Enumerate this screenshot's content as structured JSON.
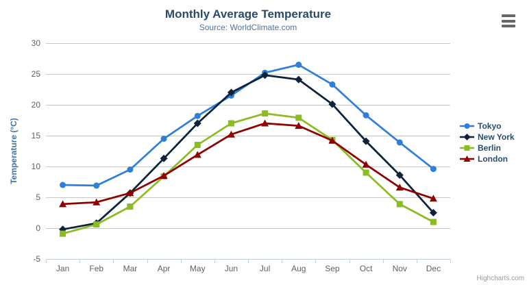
{
  "credits": {
    "label": "Highcharts.com"
  },
  "menu": {
    "icon": "hamburger-menu-icon"
  },
  "colors": {
    "title": "#274b6d",
    "subtitle": "#4d759e",
    "axis_label": "#606060",
    "axis_title": "#4572a7",
    "grid_line": "#c6c6c6",
    "axis_line": "#c0d0e0",
    "legend_text": "#274b6d",
    "menu_icon": "#666666",
    "credits": "#999999"
  },
  "chart_data": {
    "type": "line",
    "title": "Monthly Average Temperature",
    "subtitle": "Source: WorldClimate.com",
    "categories": [
      "Jan",
      "Feb",
      "Mar",
      "Apr",
      "May",
      "Jun",
      "Jul",
      "Aug",
      "Sep",
      "Oct",
      "Nov",
      "Dec"
    ],
    "xlabel": "",
    "ylabel": "Temperature (°C)",
    "ylim": [
      -5,
      30
    ],
    "yticks": [
      -5,
      0,
      5,
      10,
      15,
      20,
      25,
      30
    ],
    "grid": true,
    "legend_position": "right-middle",
    "series": [
      {
        "name": "Tokyo",
        "color": "#2f7ed8",
        "marker": "circle",
        "values": [
          7.0,
          6.9,
          9.5,
          14.5,
          18.2,
          21.5,
          25.2,
          26.5,
          23.3,
          18.3,
          13.9,
          9.6
        ]
      },
      {
        "name": "New York",
        "color": "#0d233a",
        "marker": "diamond",
        "values": [
          -0.2,
          0.8,
          5.7,
          11.3,
          17.0,
          22.0,
          24.8,
          24.1,
          20.1,
          14.1,
          8.6,
          2.5
        ]
      },
      {
        "name": "Berlin",
        "color": "#8bbc21",
        "marker": "square",
        "values": [
          -0.9,
          0.6,
          3.5,
          8.4,
          13.5,
          17.0,
          18.6,
          17.9,
          14.3,
          9.0,
          3.9,
          1.0
        ]
      },
      {
        "name": "London",
        "color": "#910000",
        "marker": "triangle",
        "values": [
          3.9,
          4.2,
          5.7,
          8.5,
          11.9,
          15.2,
          17.0,
          16.6,
          14.2,
          10.3,
          6.6,
          4.8
        ]
      }
    ]
  }
}
